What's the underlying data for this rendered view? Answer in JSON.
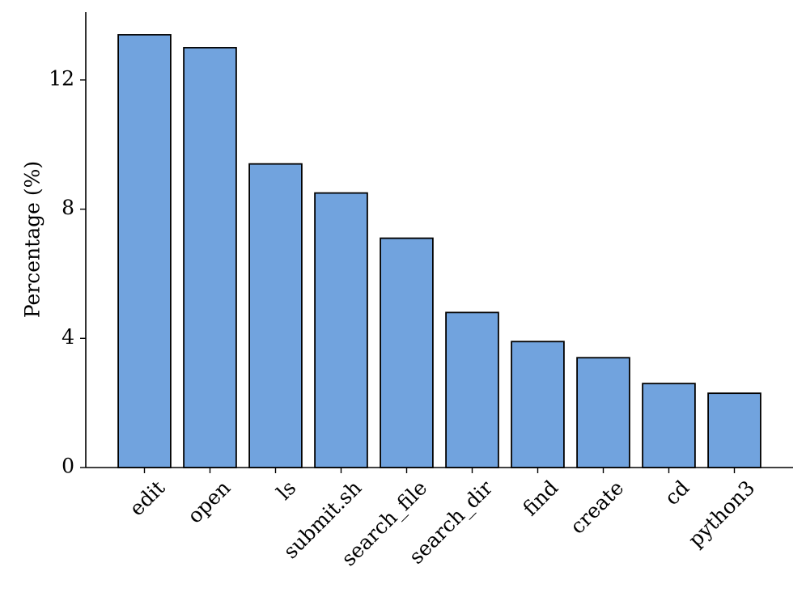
{
  "chart_data": {
    "type": "bar",
    "y_label": "Percentage (%)",
    "categories": [
      "edit",
      "open",
      "ls",
      "submit.sh",
      "search_file",
      "search_dir",
      "find",
      "create",
      "cd",
      "python3"
    ],
    "values": [
      13.4,
      13.0,
      9.4,
      8.5,
      7.1,
      4.8,
      3.9,
      3.4,
      2.6,
      2.3
    ],
    "color": "#71a3de",
    "edge_color": "#000000",
    "ylim": [
      0,
      14.1
    ],
    "yticks": [
      0,
      4,
      8,
      12
    ],
    "grid": false
  }
}
